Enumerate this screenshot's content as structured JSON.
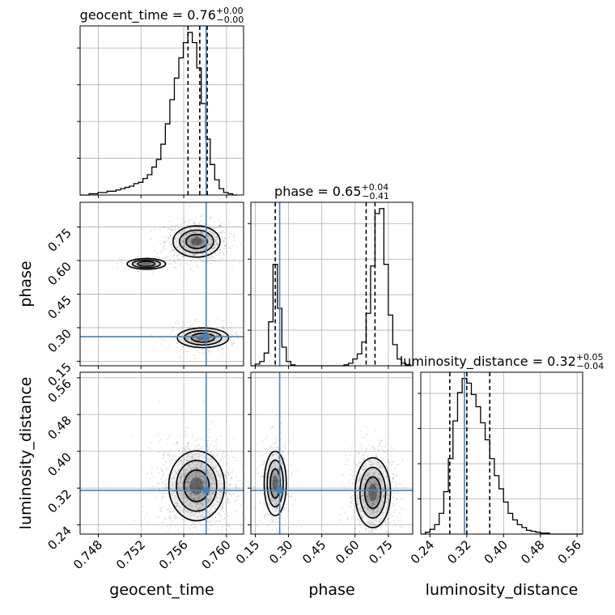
{
  "chart_data": {
    "type": "corner",
    "parameters": [
      "geocent_time",
      "phase",
      "luminosity_distance"
    ],
    "injection": {
      "geocent_time": 0.7581,
      "phase": 0.26,
      "luminosity_distance": 0.315
    },
    "titles": [
      {
        "param": "geocent_time",
        "text": "geocent_time = 0.76",
        "plus": "+0.00",
        "minus": "−0.00"
      },
      {
        "param": "phase",
        "text": "phase = 0.65",
        "plus": "+0.04",
        "minus": "−0.41"
      },
      {
        "param": "luminosity_distance",
        "text": "luminosity_distance = 0.32",
        "plus": "+0.05",
        "minus": "−0.04"
      }
    ],
    "axes": {
      "geocent_time": {
        "range": [
          0.7463,
          0.7616
        ],
        "ticks": [
          "0.748",
          "0.752",
          "0.756",
          "0.760"
        ],
        "tick_values": [
          0.748,
          0.752,
          0.756,
          0.76
        ]
      },
      "phase": {
        "range": [
          0.13,
          0.86
        ],
        "ticks": [
          "0.15",
          "0.30",
          "0.45",
          "0.60",
          "0.75"
        ],
        "tick_values": [
          0.15,
          0.3,
          0.45,
          0.6,
          0.75
        ]
      },
      "luminosity_distance": {
        "range": [
          0.22,
          0.572
        ],
        "ticks": [
          "0.24",
          "0.32",
          "0.40",
          "0.48",
          "0.56"
        ],
        "tick_values": [
          0.24,
          0.32,
          0.4,
          0.48,
          0.56
        ]
      }
    },
    "histograms": {
      "geocent_time": {
        "edges": [
          0.7463,
          0.74672,
          0.74714,
          0.74756,
          0.74798,
          0.7484,
          0.74882,
          0.74924,
          0.74966,
          0.75008,
          0.7505,
          0.75092,
          0.75134,
          0.75176,
          0.75218,
          0.7526,
          0.75302,
          0.75344,
          0.75386,
          0.75428,
          0.7547,
          0.75512,
          0.75554,
          0.75596,
          0.75638,
          0.7568,
          0.75722,
          0.75764,
          0.75806,
          0.75848,
          0.7589,
          0.75932,
          0.75974,
          0.76016,
          0.76058,
          0.761
        ],
        "counts": [
          0,
          0,
          1,
          1,
          2,
          2,
          3,
          3,
          4,
          5,
          6,
          7,
          9,
          10,
          13,
          16,
          22,
          28,
          40,
          56,
          75,
          92,
          108,
          120,
          128,
          120,
          100,
          72,
          44,
          24,
          12,
          5,
          2,
          1,
          0
        ],
        "quantiles": [
          0.7564,
          0.7575,
          0.7582
        ]
      },
      "phase": {
        "edges": [
          0.13,
          0.15,
          0.17,
          0.19,
          0.21,
          0.23,
          0.25,
          0.27,
          0.29,
          0.31,
          0.33,
          0.35,
          0.37,
          0.39,
          0.41,
          0.43,
          0.45,
          0.47,
          0.49,
          0.51,
          0.53,
          0.55,
          0.57,
          0.59,
          0.61,
          0.63,
          0.65,
          0.67,
          0.69,
          0.71,
          0.73,
          0.75,
          0.77,
          0.79,
          0.81,
          0.83,
          0.85
        ],
        "counts": [
          0,
          2,
          5,
          15,
          52,
          120,
          68,
          22,
          5,
          1,
          0,
          0,
          0,
          0,
          0,
          0,
          0,
          0,
          0,
          0,
          0,
          1,
          3,
          8,
          14,
          28,
          62,
          118,
          180,
          186,
          120,
          60,
          25,
          8,
          3,
          1
        ],
        "quantiles": [
          0.24,
          0.65,
          0.69
        ]
      },
      "luminosity_distance": {
        "edges": [
          0.22,
          0.23,
          0.24,
          0.25,
          0.26,
          0.27,
          0.28,
          0.29,
          0.3,
          0.31,
          0.32,
          0.33,
          0.34,
          0.35,
          0.36,
          0.37,
          0.38,
          0.39,
          0.4,
          0.41,
          0.42,
          0.43,
          0.44,
          0.45,
          0.46,
          0.47,
          0.48,
          0.49,
          0.5,
          0.51,
          0.52,
          0.53,
          0.54,
          0.55,
          0.56,
          0.57
        ],
        "counts": [
          0,
          2,
          5,
          10,
          22,
          45,
          80,
          120,
          150,
          165,
          160,
          148,
          135,
          118,
          100,
          80,
          62,
          48,
          34,
          22,
          15,
          10,
          7,
          4,
          3,
          2,
          1,
          1,
          0,
          0,
          0,
          0,
          0,
          0,
          0
        ],
        "quantiles": [
          0.283,
          0.32,
          0.37
        ]
      }
    },
    "contours_2d": [
      {
        "x": "geocent_time",
        "y": "phase",
        "modes": [
          {
            "cx": 0.7572,
            "cy": 0.685,
            "sx": 0.0011,
            "sy": 0.035,
            "weight": 0.62
          },
          {
            "cx": 0.7525,
            "cy": 0.585,
            "sx": 0.0009,
            "sy": 0.012,
            "weight": 0.08
          },
          {
            "cx": 0.7578,
            "cy": 0.255,
            "sx": 0.0012,
            "sy": 0.022,
            "weight": 0.3
          }
        ]
      },
      {
        "x": "geocent_time",
        "y": "luminosity_distance",
        "modes": [
          {
            "cx": 0.7572,
            "cy": 0.325,
            "sx": 0.0013,
            "sy": 0.038,
            "weight": 1.0
          }
        ]
      },
      {
        "x": "phase",
        "y": "luminosity_distance",
        "modes": [
          {
            "cx": 0.24,
            "cy": 0.33,
            "sx": 0.025,
            "sy": 0.035,
            "weight": 0.32
          },
          {
            "cx": 0.68,
            "cy": 0.31,
            "sx": 0.04,
            "sy": 0.038,
            "weight": 0.68
          }
        ]
      }
    ],
    "colors": {
      "truth": "#4682b4",
      "line": "#000000",
      "grid": "#b0b0b0",
      "density": "#000000"
    },
    "grid": true
  }
}
